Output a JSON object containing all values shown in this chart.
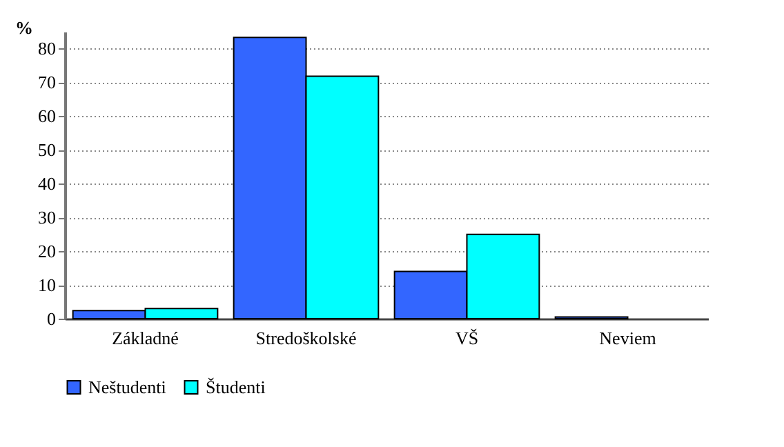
{
  "chart_data": {
    "type": "bar",
    "ylabel": "%",
    "categories": [
      "Základné",
      "Stredoškolské",
      "VŠ",
      "Neviem"
    ],
    "series": [
      {
        "name": "Neštudenti",
        "color": "#3366ff",
        "values": [
          2.4,
          83.3,
          14.0,
          0.5
        ]
      },
      {
        "name": "Študenti",
        "color": "#00ffff",
        "values": [
          3.0,
          71.8,
          25.0,
          null
        ]
      }
    ],
    "ylim": [
      0,
      85
    ],
    "yticks": [
      0,
      10,
      20,
      30,
      40,
      50,
      60,
      70,
      80
    ],
    "grid": "y",
    "legend": "bottom"
  }
}
